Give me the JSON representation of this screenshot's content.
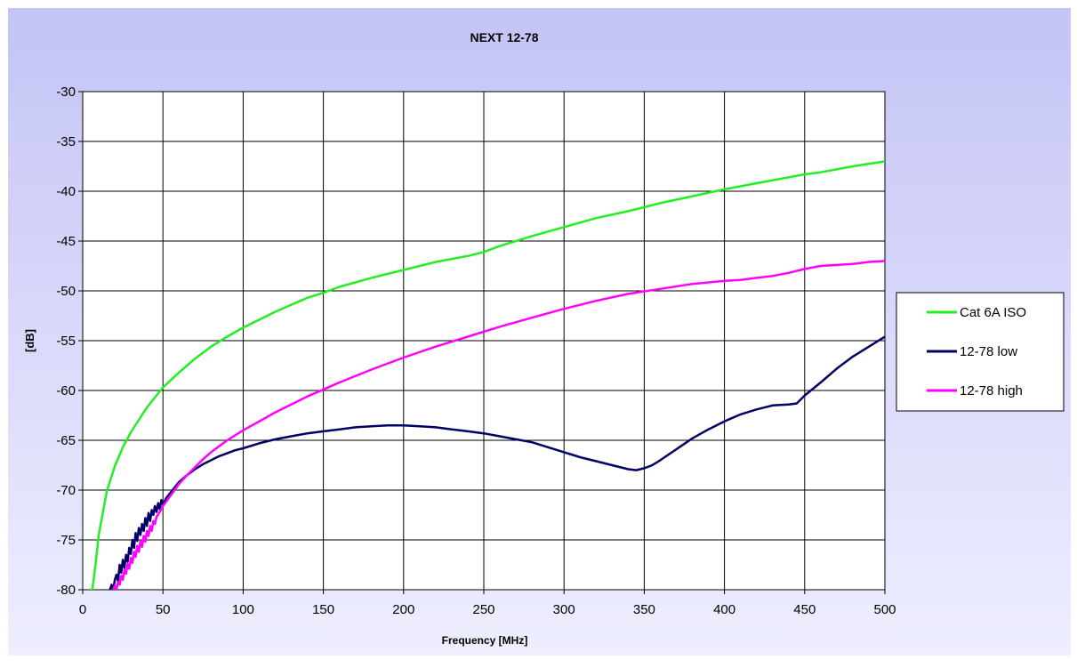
{
  "chart_data": {
    "type": "line",
    "title": "NEXT 12-78",
    "xlabel": "Frequency [MHz]",
    "ylabel": "[dB]",
    "xlim": [
      0,
      500
    ],
    "ylim": [
      -80,
      -30
    ],
    "xticks": [
      0,
      50,
      100,
      150,
      200,
      250,
      300,
      350,
      400,
      450,
      500
    ],
    "yticks": [
      -30,
      -35,
      -40,
      -45,
      -50,
      -55,
      -60,
      -65,
      -70,
      -75,
      -80
    ],
    "xtick_labels": [
      "0",
      "50",
      "100",
      "150",
      "200",
      "250",
      "300",
      "350",
      "400",
      "450",
      "500"
    ],
    "ytick_labels": [
      "-30",
      "-35",
      "-40",
      "-45",
      "-50",
      "-55",
      "-60",
      "-65",
      "-70",
      "-75",
      "-80"
    ],
    "grid": true,
    "legend_position": "right",
    "colors": {
      "background_top": "#c4c4f6",
      "background_bottom": "#eeeeff",
      "plot_area": "#ffffff",
      "grid": "#000000"
    },
    "series": [
      {
        "name": "Cat 6A ISO",
        "color": "#22ee22",
        "x": [
          4,
          6,
          8,
          10,
          15,
          20,
          25,
          30,
          40,
          50,
          60,
          70,
          80,
          90,
          100,
          120,
          140,
          150,
          160,
          180,
          200,
          220,
          240,
          250,
          260,
          280,
          300,
          320,
          340,
          350,
          360,
          380,
          400,
          420,
          440,
          450,
          460,
          480,
          500
        ],
        "y": [
          -80,
          -80,
          -77.5,
          -74.5,
          -70.1,
          -67.6,
          -65.7,
          -64.2,
          -61.7,
          -59.7,
          -58.2,
          -56.8,
          -55.6,
          -54.6,
          -53.7,
          -52.1,
          -50.7,
          -50.2,
          -49.6,
          -48.7,
          -47.9,
          -47.1,
          -46.5,
          -46.1,
          -45.5,
          -44.5,
          -43.6,
          -42.7,
          -42.0,
          -41.6,
          -41.2,
          -40.5,
          -39.8,
          -39.2,
          -38.6,
          -38.3,
          -38.1,
          -37.5,
          -37.0
        ]
      },
      {
        "name": "12-78 low",
        "color": "#000066",
        "x": [
          17,
          18,
          19,
          20,
          21,
          22,
          23,
          24,
          25,
          26,
          27,
          28,
          29,
          30,
          31,
          32,
          33,
          34,
          35,
          36,
          37,
          38,
          39,
          40,
          41,
          42,
          43,
          44,
          45,
          46,
          47,
          48,
          49,
          50,
          52,
          54,
          56,
          58,
          60,
          65,
          70,
          75,
          80,
          85,
          90,
          95,
          100,
          110,
          120,
          130,
          140,
          150,
          160,
          170,
          180,
          190,
          200,
          210,
          220,
          230,
          240,
          250,
          260,
          270,
          280,
          290,
          300,
          310,
          320,
          330,
          340,
          345,
          350,
          355,
          360,
          370,
          380,
          390,
          400,
          410,
          420,
          430,
          440,
          445,
          450,
          460,
          470,
          480,
          490,
          500
        ],
        "y": [
          -80,
          -79.5,
          -80,
          -79,
          -78.5,
          -79.2,
          -77.5,
          -78.3,
          -77,
          -77.8,
          -76.5,
          -77.2,
          -75.8,
          -76.4,
          -75,
          -75.8,
          -74.3,
          -75.1,
          -73.8,
          -74.5,
          -73.4,
          -74.1,
          -72.8,
          -73.6,
          -72.3,
          -73.1,
          -72,
          -72.5,
          -71.6,
          -72.2,
          -71.3,
          -71.9,
          -71.0,
          -71.5,
          -70.8,
          -70.4,
          -70.0,
          -69.6,
          -69.2,
          -68.5,
          -67.9,
          -67.4,
          -67.0,
          -66.6,
          -66.3,
          -66.0,
          -65.8,
          -65.3,
          -64.9,
          -64.6,
          -64.3,
          -64.1,
          -63.9,
          -63.7,
          -63.6,
          -63.5,
          -63.5,
          -63.6,
          -63.7,
          -63.9,
          -64.1,
          -64.3,
          -64.6,
          -64.9,
          -65.2,
          -65.7,
          -66.2,
          -66.7,
          -67.1,
          -67.5,
          -67.9,
          -68.0,
          -67.8,
          -67.5,
          -67.0,
          -65.9,
          -64.8,
          -63.9,
          -63.1,
          -62.4,
          -61.9,
          -61.5,
          -61.4,
          -61.3,
          -60.5,
          -59.2,
          -57.8,
          -56.6,
          -55.6,
          -54.6
        ]
      },
      {
        "name": "12-78 high",
        "color": "#ff00ff",
        "x": [
          19,
          20,
          21,
          22,
          23,
          24,
          25,
          26,
          27,
          28,
          29,
          30,
          31,
          32,
          33,
          34,
          35,
          36,
          37,
          38,
          39,
          40,
          41,
          42,
          43,
          44,
          45,
          46,
          48,
          50,
          55,
          60,
          65,
          70,
          75,
          80,
          90,
          100,
          120,
          140,
          160,
          180,
          200,
          220,
          240,
          260,
          280,
          300,
          320,
          340,
          360,
          380,
          400,
          410,
          420,
          430,
          440,
          450,
          460,
          470,
          480,
          490,
          500
        ],
        "y": [
          -80,
          -79.6,
          -80,
          -79.2,
          -79.5,
          -78.6,
          -79.0,
          -78.0,
          -78.4,
          -77.4,
          -77.9,
          -76.8,
          -77.3,
          -76.2,
          -76.7,
          -75.6,
          -76.2,
          -75.1,
          -75.7,
          -74.6,
          -75.2,
          -74.1,
          -74.6,
          -73.6,
          -74.1,
          -73.1,
          -73.4,
          -72.7,
          -72.2,
          -71.6,
          -70.5,
          -69.4,
          -68.5,
          -67.7,
          -66.9,
          -66.2,
          -65.0,
          -64.0,
          -62.2,
          -60.6,
          -59.2,
          -57.9,
          -56.7,
          -55.6,
          -54.6,
          -53.6,
          -52.7,
          -51.8,
          -51.0,
          -50.3,
          -49.8,
          -49.3,
          -49.0,
          -48.9,
          -48.7,
          -48.5,
          -48.2,
          -47.8,
          -47.5,
          -47.4,
          -47.3,
          -47.1,
          -47.0
        ]
      }
    ]
  }
}
